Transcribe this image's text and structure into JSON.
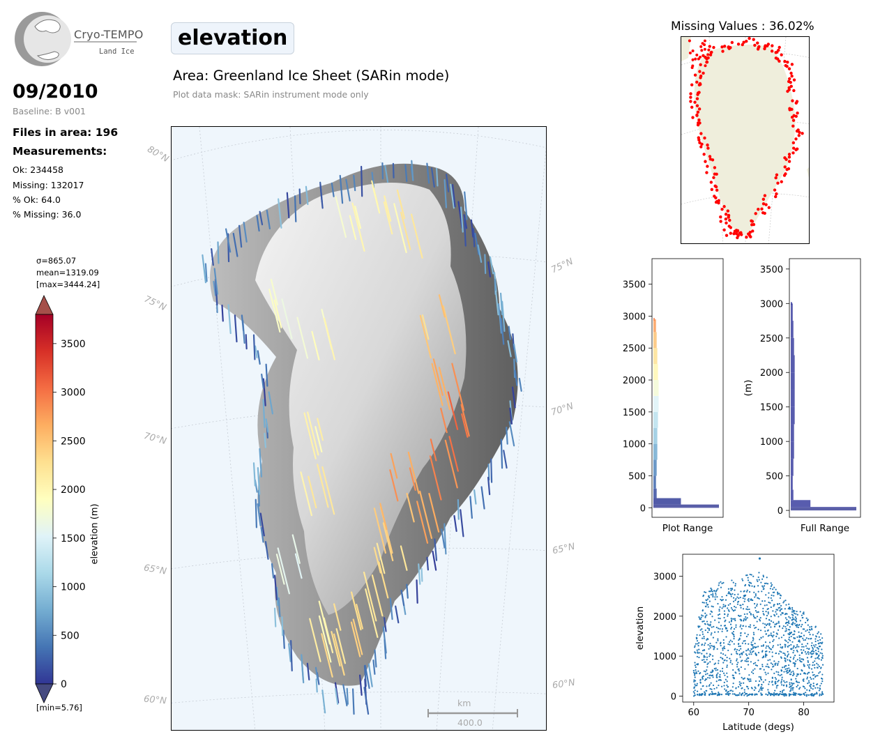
{
  "logo": {
    "main": "Cryo-TEMPO",
    "sub": "Land Ice"
  },
  "header": {
    "date": "09/2010",
    "baseline": "Baseline: B v001",
    "files": "Files in area: 196",
    "measurements_title": "Measurements:",
    "stats": [
      "Ok: 234458",
      "Missing: 132017",
      "% Ok: 64.0",
      "% Missing: 36.0"
    ]
  },
  "title": {
    "parameter": "elevation",
    "area": "Area: Greenland Ice Sheet (SARin mode)",
    "mask": "Plot data mask: SARin instrument mode only"
  },
  "colorbar": {
    "sigma": "σ=865.07",
    "mean": "mean=1319.09",
    "max": "[max=3444.24]",
    "min": "[min=5.76]",
    "label": "elevation (m)",
    "ticks": [
      "0",
      "500",
      "1000",
      "1500",
      "2000",
      "2500",
      "3000",
      "3500"
    ],
    "colors": [
      "#313695",
      "#4575b4",
      "#74add1",
      "#abd9e9",
      "#e0f3f8",
      "#ffffbf",
      "#fee090",
      "#fdae61",
      "#f46d43",
      "#d73027",
      "#a50026"
    ]
  },
  "map": {
    "lat_labels": [
      "80°N",
      "75°N",
      "70°N",
      "65°N",
      "60°N",
      "75°N",
      "70°N",
      "65°N",
      "60°N"
    ],
    "scale_unit": "km",
    "scale_value": "400.0"
  },
  "missing": {
    "title": "Missing Values : 36.02%",
    "color": "#ff0000"
  },
  "chart_data": [
    {
      "type": "histogram",
      "xlabel": "Plot Range",
      "ylabel": "",
      "ylim": [
        -150,
        3900
      ],
      "yticks": [
        0,
        500,
        1000,
        1500,
        2000,
        2500,
        3000,
        3500
      ],
      "bins": [
        {
          "y": 20,
          "count": 1.0
        },
        {
          "y": 50,
          "count": 0.42
        },
        {
          "y": 150,
          "count": 0.05
        },
        {
          "y": 300,
          "count": 0.04
        },
        {
          "y": 500,
          "count": 0.05
        },
        {
          "y": 750,
          "count": 0.06
        },
        {
          "y": 1000,
          "count": 0.06
        },
        {
          "y": 1250,
          "count": 0.07
        },
        {
          "y": 1500,
          "count": 0.08
        },
        {
          "y": 1750,
          "count": 0.08
        },
        {
          "y": 2000,
          "count": 0.07
        },
        {
          "y": 2250,
          "count": 0.06
        },
        {
          "y": 2500,
          "count": 0.05
        },
        {
          "y": 2750,
          "count": 0.04
        },
        {
          "y": 2950,
          "count": 0.02
        }
      ]
    },
    {
      "type": "histogram",
      "xlabel": "Full Range",
      "ylabel": "(m)",
      "ylim": [
        -100,
        3650
      ],
      "yticks": [
        0,
        500,
        1000,
        1500,
        2000,
        2500,
        3000,
        3500
      ],
      "bins": [
        {
          "y": 20,
          "count": 1.0
        },
        {
          "y": 50,
          "count": 0.3
        },
        {
          "y": 150,
          "count": 0.04
        },
        {
          "y": 300,
          "count": 0.03
        },
        {
          "y": 500,
          "count": 0.04
        },
        {
          "y": 750,
          "count": 0.05
        },
        {
          "y": 1000,
          "count": 0.05
        },
        {
          "y": 1250,
          "count": 0.06
        },
        {
          "y": 1500,
          "count": 0.06
        },
        {
          "y": 1750,
          "count": 0.06
        },
        {
          "y": 2000,
          "count": 0.06
        },
        {
          "y": 2250,
          "count": 0.05
        },
        {
          "y": 2500,
          "count": 0.04
        },
        {
          "y": 2750,
          "count": 0.03
        },
        {
          "y": 3000,
          "count": 0.02
        }
      ]
    },
    {
      "type": "scatter",
      "xlabel": "Latitude (degs)",
      "ylabel": "elevation",
      "xlim": [
        58,
        85.5
      ],
      "ylim": [
        -150,
        3550
      ],
      "xticks": [
        60,
        70,
        80
      ],
      "yticks": [
        0,
        1000,
        2000,
        3000
      ],
      "color": "#1f77b4",
      "envelope": [
        {
          "x": 60,
          "y": 1200
        },
        {
          "x": 61,
          "y": 2000
        },
        {
          "x": 62,
          "y": 2700
        },
        {
          "x": 64,
          "y": 2900
        },
        {
          "x": 66,
          "y": 2850
        },
        {
          "x": 68,
          "y": 3000
        },
        {
          "x": 70,
          "y": 3050
        },
        {
          "x": 72,
          "y": 3100
        },
        {
          "x": 74,
          "y": 2900
        },
        {
          "x": 76,
          "y": 2500
        },
        {
          "x": 78,
          "y": 2200
        },
        {
          "x": 80,
          "y": 2100
        },
        {
          "x": 82,
          "y": 1800
        },
        {
          "x": 83.5,
          "y": 1500
        }
      ],
      "outlier": {
        "x": 72,
        "y": 3444
      }
    }
  ]
}
